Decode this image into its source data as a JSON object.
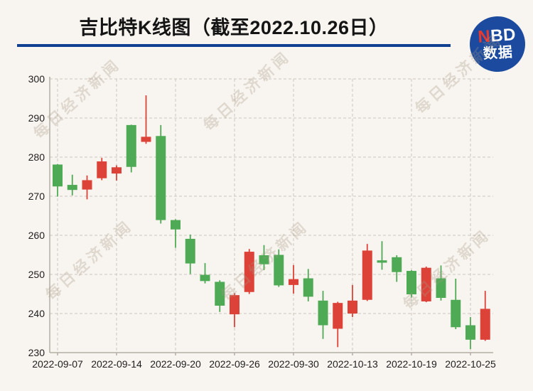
{
  "header": {
    "title": "吉比特K线图（截至2022.10.26日）"
  },
  "logo": {
    "n": "N",
    "bd": "BD",
    "line2": "数据",
    "bg_color": "#1b4a9e",
    "accent_color": "#e8392e"
  },
  "watermark": {
    "text": "每日经济新闻"
  },
  "chart_data": {
    "type": "candlestick",
    "title": "吉比特K线图（截至2022.10.26日）",
    "ylim": [
      230,
      300
    ],
    "y_ticks": [
      230,
      240,
      250,
      260,
      270,
      280,
      290,
      300
    ],
    "x_tick_labels": [
      "2022-09-07",
      "2022-09-14",
      "2022-09-20",
      "2022-09-26",
      "2022-09-30",
      "2022-10-13",
      "2022-10-19",
      "2022-10-25"
    ],
    "x_tick_indices": [
      0,
      4,
      8,
      12,
      16,
      20,
      24,
      28
    ],
    "up_color": "#dc4238",
    "down_color": "#4faa55",
    "grid": true,
    "legend": "none",
    "candles": [
      {
        "date": "2022-09-07",
        "open": 278.1,
        "high": 278.2,
        "low": 269.9,
        "close": 272.5
      },
      {
        "date": "2022-09-08",
        "open": 272.9,
        "high": 275.5,
        "low": 270.2,
        "close": 271.6
      },
      {
        "date": "2022-09-09",
        "open": 271.7,
        "high": 275.3,
        "low": 269.2,
        "close": 274.1
      },
      {
        "date": "2022-09-13",
        "open": 274.6,
        "high": 279.8,
        "low": 274.1,
        "close": 278.9
      },
      {
        "date": "2022-09-14",
        "open": 275.8,
        "high": 277.9,
        "low": 274.0,
        "close": 277.4
      },
      {
        "date": "2022-09-15",
        "open": 288.2,
        "high": 288.3,
        "low": 276.1,
        "close": 277.5
      },
      {
        "date": "2022-09-16",
        "open": 283.9,
        "high": 295.8,
        "low": 283.4,
        "close": 285.2
      },
      {
        "date": "2022-09-19",
        "open": 285.4,
        "high": 288.2,
        "low": 263.0,
        "close": 263.9
      },
      {
        "date": "2022-09-20",
        "open": 263.9,
        "high": 264.1,
        "low": 256.8,
        "close": 261.5
      },
      {
        "date": "2022-09-21",
        "open": 259.1,
        "high": 260.2,
        "low": 250.1,
        "close": 252.8
      },
      {
        "date": "2022-09-22",
        "open": 249.9,
        "high": 252.9,
        "low": 247.7,
        "close": 248.3
      },
      {
        "date": "2022-09-23",
        "open": 248.1,
        "high": 248.5,
        "low": 240.4,
        "close": 242.0
      },
      {
        "date": "2022-09-26",
        "open": 239.8,
        "high": 245.2,
        "low": 236.5,
        "close": 244.7
      },
      {
        "date": "2022-09-27",
        "open": 245.5,
        "high": 256.5,
        "low": 245.0,
        "close": 255.8
      },
      {
        "date": "2022-09-28",
        "open": 254.9,
        "high": 257.5,
        "low": 251.1,
        "close": 252.6
      },
      {
        "date": "2022-09-29",
        "open": 255.0,
        "high": 256.4,
        "low": 246.8,
        "close": 247.2
      },
      {
        "date": "2022-09-30",
        "open": 247.3,
        "high": 252.4,
        "low": 245.1,
        "close": 248.8
      },
      {
        "date": "2022-10-10",
        "open": 249.0,
        "high": 251.4,
        "low": 243.1,
        "close": 244.3
      },
      {
        "date": "2022-10-11",
        "open": 243.3,
        "high": 245.8,
        "low": 233.5,
        "close": 237.0
      },
      {
        "date": "2022-10-12",
        "open": 236.1,
        "high": 243.0,
        "low": 231.4,
        "close": 242.7
      },
      {
        "date": "2022-10-13",
        "open": 240.0,
        "high": 247.3,
        "low": 239.1,
        "close": 243.3
      },
      {
        "date": "2022-10-14",
        "open": 243.5,
        "high": 257.8,
        "low": 243.2,
        "close": 256.1
      },
      {
        "date": "2022-10-17",
        "open": 253.6,
        "high": 258.5,
        "low": 251.2,
        "close": 253.0
      },
      {
        "date": "2022-10-18",
        "open": 254.4,
        "high": 254.9,
        "low": 248.1,
        "close": 250.6
      },
      {
        "date": "2022-10-19",
        "open": 250.9,
        "high": 251.1,
        "low": 244.1,
        "close": 244.9
      },
      {
        "date": "2022-10-20",
        "open": 243.1,
        "high": 252.0,
        "low": 242.9,
        "close": 251.7
      },
      {
        "date": "2022-10-21",
        "open": 249.0,
        "high": 252.3,
        "low": 243.3,
        "close": 244.0
      },
      {
        "date": "2022-10-24",
        "open": 243.5,
        "high": 248.9,
        "low": 236.0,
        "close": 236.5
      },
      {
        "date": "2022-10-25",
        "open": 237.0,
        "high": 239.1,
        "low": 230.9,
        "close": 233.3
      },
      {
        "date": "2022-10-26",
        "open": 233.3,
        "high": 245.8,
        "low": 233.0,
        "close": 241.2
      }
    ]
  }
}
